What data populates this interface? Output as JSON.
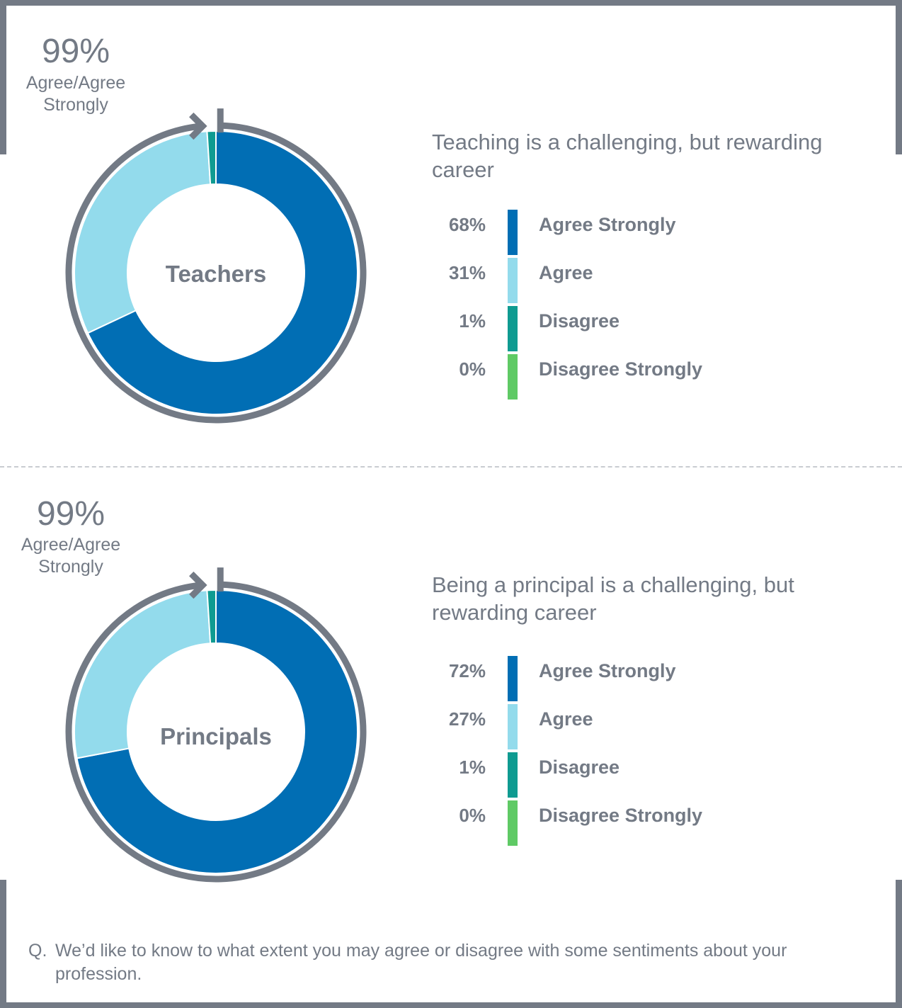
{
  "colors": {
    "agree_strongly": "#016eb4",
    "agree": "#93dbec",
    "disagree": "#0f9b91",
    "disagree_strongly": "#5fca65",
    "frame": "#737a85"
  },
  "chart_data": [
    {
      "type": "pie",
      "title": "Teaching is a challenging, but rewarding career",
      "center_label": "Teachers",
      "summary_value": "99%",
      "summary_label": "Agree/Agree Strongly",
      "slices": [
        {
          "label": "Agree Strongly",
          "value": 68,
          "display": "68%"
        },
        {
          "label": "Agree",
          "value": 31,
          "display": "31%"
        },
        {
          "label": "Disagree",
          "value": 1,
          "display": "1%"
        },
        {
          "label": "Disagree Strongly",
          "value": 0,
          "display": "0%"
        }
      ]
    },
    {
      "type": "pie",
      "title": "Being a principal is a challenging, but rewarding career",
      "center_label": "Principals",
      "summary_value": "99%",
      "summary_label": "Agree/Agree Strongly",
      "slices": [
        {
          "label": "Agree Strongly",
          "value": 72,
          "display": "72%"
        },
        {
          "label": "Agree",
          "value": 27,
          "display": "27%"
        },
        {
          "label": "Disagree",
          "value": 1,
          "display": "1%"
        },
        {
          "label": "Disagree Strongly",
          "value": 0,
          "display": "0%"
        }
      ]
    }
  ],
  "footnote": {
    "marker": "Q.",
    "text": "We’d like to know to what extent you may agree or disagree with some sentiments about your profession."
  }
}
